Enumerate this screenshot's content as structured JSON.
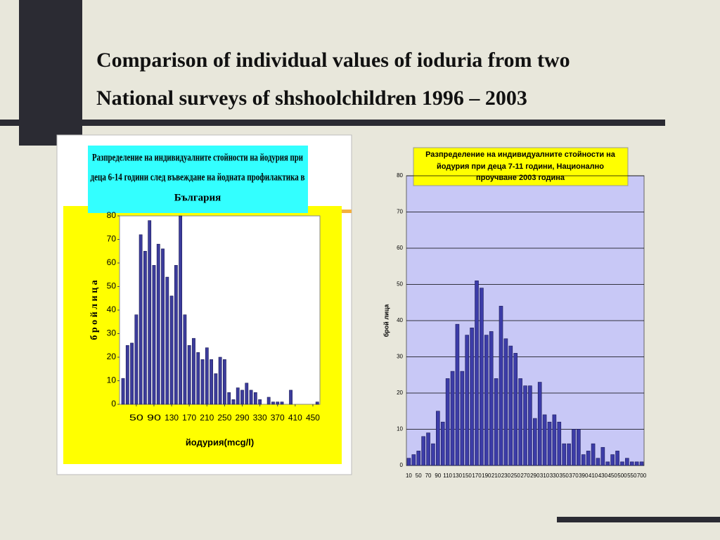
{
  "slide_title": [
    "Comparison of individual values of ioduria from two",
    "National surveys of shshoolchildren 1996 – 2003"
  ],
  "chart_data": [
    {
      "type": "bar",
      "title": [
        "Разпределение на индивидуалните стойности на йодурия при",
        "деца  6-14 години след въвеждане на йодната профилактика в",
        "България"
      ],
      "x": [
        20,
        30,
        40,
        50,
        60,
        70,
        80,
        90,
        100,
        110,
        120,
        130,
        140,
        150,
        160,
        170,
        180,
        190,
        200,
        210,
        220,
        230,
        240,
        250,
        260,
        270,
        280,
        290,
        300,
        310,
        320,
        330,
        340,
        350,
        360,
        370,
        380,
        390,
        400,
        410,
        420,
        430,
        440,
        450,
        460
      ],
      "values": [
        11,
        25,
        26,
        38,
        72,
        65,
        78,
        59,
        68,
        66,
        54,
        46,
        59,
        80,
        38,
        25,
        28,
        22,
        19,
        24,
        19,
        13,
        20,
        19,
        5,
        2,
        7,
        6,
        9,
        6,
        5,
        2,
        0,
        3,
        1,
        1,
        1,
        0,
        6,
        0,
        0,
        0,
        0,
        0,
        1
      ],
      "xlim": [
        12,
        466
      ],
      "xticks": [
        50,
        90,
        130,
        170,
        210,
        250,
        290,
        330,
        370,
        410,
        450
      ],
      "ylim": [
        0,
        80
      ],
      "yticks": [
        0,
        10,
        20,
        30,
        40,
        50,
        60,
        70,
        80
      ],
      "xlabel": "йодурия(mcg/l)",
      "ylabel": "б р о й   л и ц а",
      "color": "#3c3c9c",
      "grid": false
    },
    {
      "type": "bar",
      "title": [
        "Разпределение на индивидуалните стойности на",
        "йодурия при деца 7-11 години, Национално",
        "проучване 2003 година"
      ],
      "categories": [
        "10",
        null,
        "50",
        null,
        "70",
        null,
        "90",
        null,
        "110",
        null,
        "130",
        null,
        "150",
        null,
        "170",
        null,
        "190",
        null,
        "210",
        null,
        "230",
        null,
        "250",
        null,
        "270",
        null,
        "290",
        null,
        "310",
        null,
        "330",
        null,
        "350",
        null,
        "370",
        null,
        "390",
        null,
        "410",
        null,
        "430",
        null,
        "450",
        null,
        "500",
        null,
        "550",
        null,
        "700"
      ],
      "values": [
        2,
        3,
        4,
        8,
        9,
        6,
        15,
        12,
        24,
        26,
        39,
        26,
        36,
        38,
        51,
        49,
        36,
        37,
        24,
        44,
        35,
        33,
        31,
        24,
        22,
        22,
        13,
        23,
        14,
        12,
        14,
        12,
        6,
        6,
        10,
        10,
        3,
        4,
        6,
        2,
        5,
        1,
        3,
        4,
        1,
        2,
        1,
        1,
        1
      ],
      "ylim": [
        0,
        80
      ],
      "yticks": [
        0,
        10,
        20,
        30,
        40,
        50,
        60,
        70,
        80
      ],
      "ylabel": "брой лица",
      "color": "#3c3ca8",
      "grid": true
    }
  ]
}
